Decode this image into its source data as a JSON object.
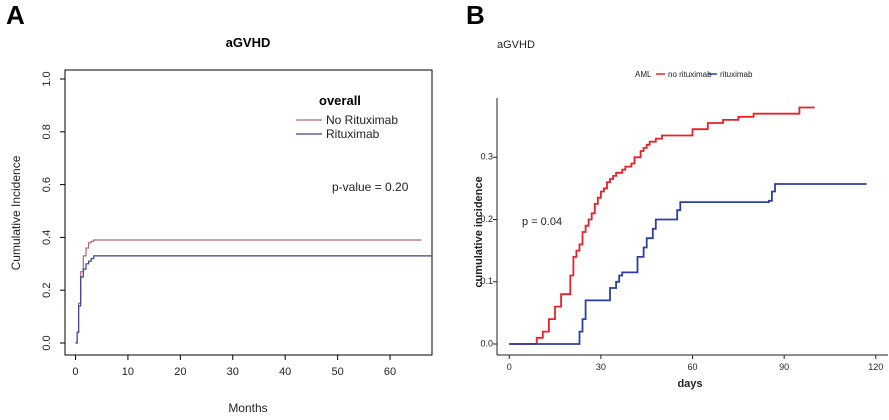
{
  "panels": [
    {
      "label": "A"
    },
    {
      "label": "B"
    }
  ],
  "chart_data": [
    {
      "type": "line",
      "panel": "A",
      "title": "aGVHD",
      "xlabel": "Months",
      "ylabel": "Cumulative Incidence",
      "xlim": [
        -2,
        68
      ],
      "ylim": [
        0,
        1.0
      ],
      "xticks": [
        "0",
        "10",
        "20",
        "30",
        "40",
        "50",
        "60"
      ],
      "yticks": [
        "0.0",
        "0.2",
        "0.4",
        "0.6",
        "0.8",
        "1.0"
      ],
      "legend": {
        "title": "overall",
        "position": "top-right"
      },
      "annotation": "p-value = 0.20",
      "series": [
        {
          "name": "No Rituximab",
          "color": "#b5646e",
          "x": [
            0,
            0.3,
            0.6,
            1,
            1.5,
            2,
            2.5,
            3,
            3.5,
            4,
            66
          ],
          "y": [
            0,
            0.04,
            0.15,
            0.27,
            0.33,
            0.36,
            0.38,
            0.385,
            0.39,
            0.39,
            0.39
          ]
        },
        {
          "name": "Rituximab",
          "color": "#3f3f8f",
          "x": [
            0,
            0.3,
            0.6,
            1,
            1.5,
            2,
            2.5,
            3,
            3.5,
            4,
            68
          ],
          "y": [
            0,
            0.04,
            0.14,
            0.25,
            0.28,
            0.3,
            0.31,
            0.32,
            0.33,
            0.33,
            0.33
          ]
        }
      ]
    },
    {
      "type": "line",
      "panel": "B",
      "title": "aGVHD",
      "xlabel": "days",
      "ylabel": "cumulative incidence",
      "xlim": [
        -4,
        124
      ],
      "ylim": [
        0,
        0.4
      ],
      "xticks": [
        "0",
        "30",
        "60",
        "90",
        "120"
      ],
      "yticks": [
        "0.0",
        "0.1",
        "0.2",
        "0.3"
      ],
      "legend": {
        "title": "AML",
        "position": "top"
      },
      "annotation": "p = 0.04",
      "series": [
        {
          "name": "no rituximab",
          "color": "#e8202a",
          "x": [
            0,
            9,
            11,
            13,
            15,
            17,
            20,
            21,
            22,
            23,
            24,
            25,
            26,
            27,
            28,
            29,
            30,
            31,
            32,
            33,
            34,
            35,
            37,
            38,
            40,
            41,
            43,
            44,
            45,
            46,
            48,
            50,
            55,
            60,
            65,
            70,
            75,
            80,
            85,
            95,
            100
          ],
          "y": [
            0,
            0.01,
            0.02,
            0.04,
            0.06,
            0.08,
            0.11,
            0.14,
            0.15,
            0.16,
            0.18,
            0.19,
            0.2,
            0.21,
            0.225,
            0.235,
            0.245,
            0.25,
            0.26,
            0.265,
            0.27,
            0.275,
            0.28,
            0.285,
            0.29,
            0.3,
            0.31,
            0.315,
            0.32,
            0.325,
            0.33,
            0.335,
            0.335,
            0.345,
            0.355,
            0.36,
            0.365,
            0.37,
            0.37,
            0.38,
            0.38
          ]
        },
        {
          "name": "rituximab",
          "color": "#2d3fa0",
          "x": [
            0,
            23,
            24,
            25,
            32,
            33,
            35,
            36,
            37,
            42,
            44,
            45,
            47,
            48,
            55,
            56,
            57,
            85,
            86,
            87,
            117
          ],
          "y": [
            0,
            0.02,
            0.04,
            0.07,
            0.07,
            0.09,
            0.1,
            0.11,
            0.115,
            0.14,
            0.155,
            0.17,
            0.185,
            0.2,
            0.215,
            0.228,
            0.228,
            0.23,
            0.245,
            0.257,
            0.257
          ]
        }
      ]
    }
  ]
}
